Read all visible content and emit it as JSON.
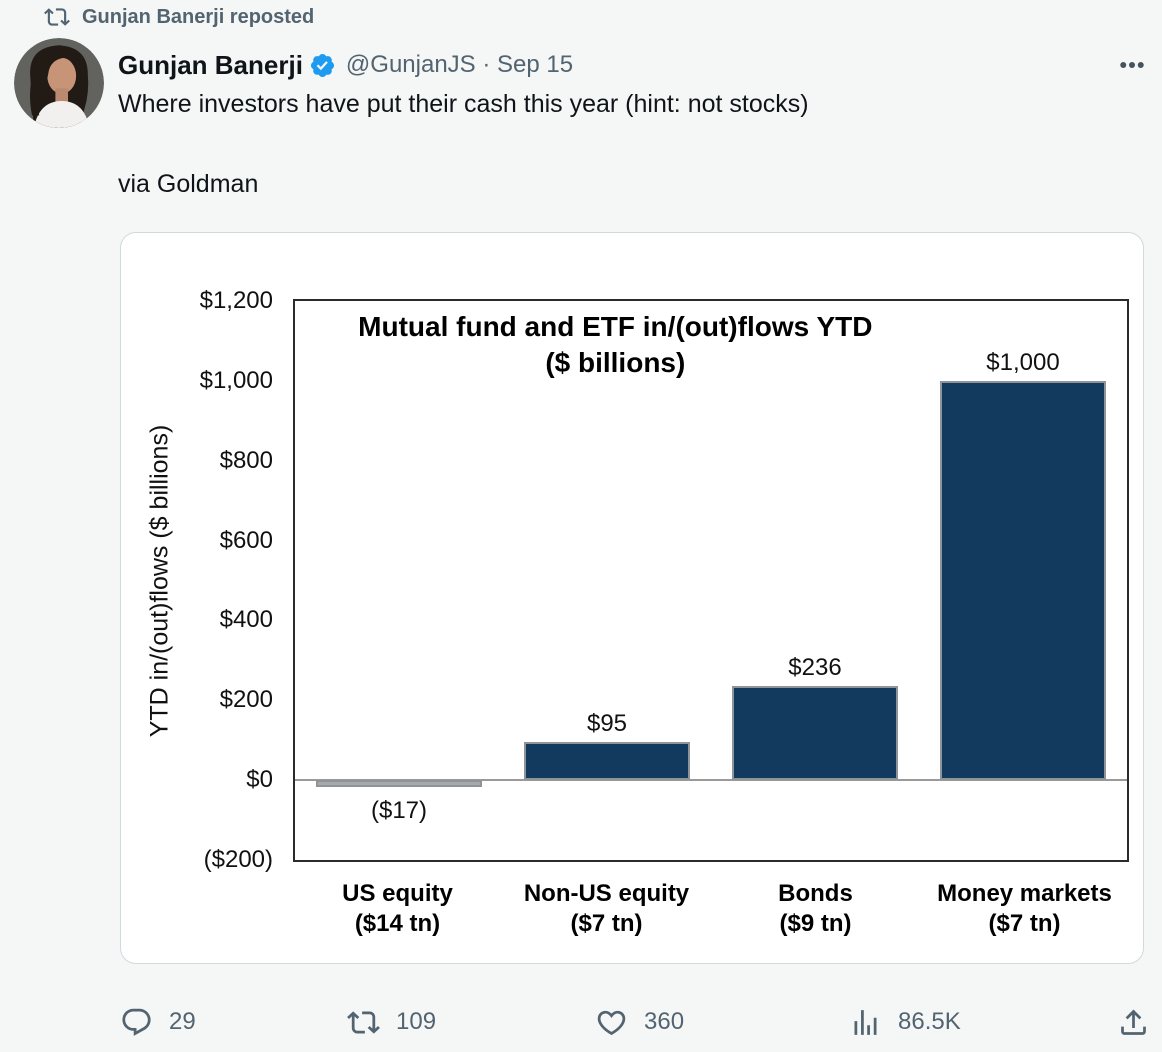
{
  "colors": {
    "page_bg": "#f5f6f6",
    "card_border": "#cfd9de",
    "text_primary": "#0f1419",
    "text_secondary": "#536471",
    "verified_blue": "#1d9bf0",
    "bar_navy": "#123a5f",
    "bar_gray": "#a9a9a9",
    "bar_border": "#8f9499",
    "zero_line": "#9a9a9a",
    "plot_border": "#2b2b2b"
  },
  "repost_banner": {
    "icon": "repost-icon",
    "label": "Gunjan Banerji reposted"
  },
  "header": {
    "author": "Gunjan Banerji",
    "verified_icon": "verified-badge-icon",
    "handle_line": "@GunjanJS · Sep 15",
    "more_icon": "more-icon"
  },
  "tweet": {
    "line1": "Where investors have put their cash this year (hint: not stocks)",
    "line2": "via Goldman"
  },
  "chart_data": {
    "type": "bar",
    "title": "Mutual fund and ETF in/(out)flows YTD",
    "subtitle": "($ billions)",
    "ylabel": "YTD in/(out)flows ($ billions)",
    "xlabel": "",
    "categories": [
      "US equity",
      "Non-US equity",
      "Bonds",
      "Money markets"
    ],
    "category_sublabels": [
      "($14 tn)",
      "($7 tn)",
      "($9 tn)",
      "($7 tn)"
    ],
    "values": [
      -17,
      95,
      236,
      1000
    ],
    "value_labels": [
      "($17)",
      "$95",
      "$236",
      "$1,000"
    ],
    "ylim": [
      -200,
      1200
    ],
    "ytick_step": 200,
    "ytick_labels": [
      "$1,200",
      "$1,000",
      "$800",
      "$600",
      "$400",
      "$200",
      "$0",
      "($200)"
    ],
    "bar_colors": [
      "#a9a9a9",
      "#123a5f",
      "#123a5f",
      "#123a5f"
    ],
    "bar_border_color": "#8f9499",
    "grid": false,
    "legend": null
  },
  "actions": {
    "reply": {
      "icon": "reply-icon",
      "count": "29"
    },
    "repost": {
      "icon": "repost-icon",
      "count": "109"
    },
    "like": {
      "icon": "like-icon",
      "count": "360"
    },
    "views": {
      "icon": "analytics-icon",
      "count": "86.5K"
    },
    "share": {
      "icon": "share-icon",
      "count": ""
    }
  }
}
